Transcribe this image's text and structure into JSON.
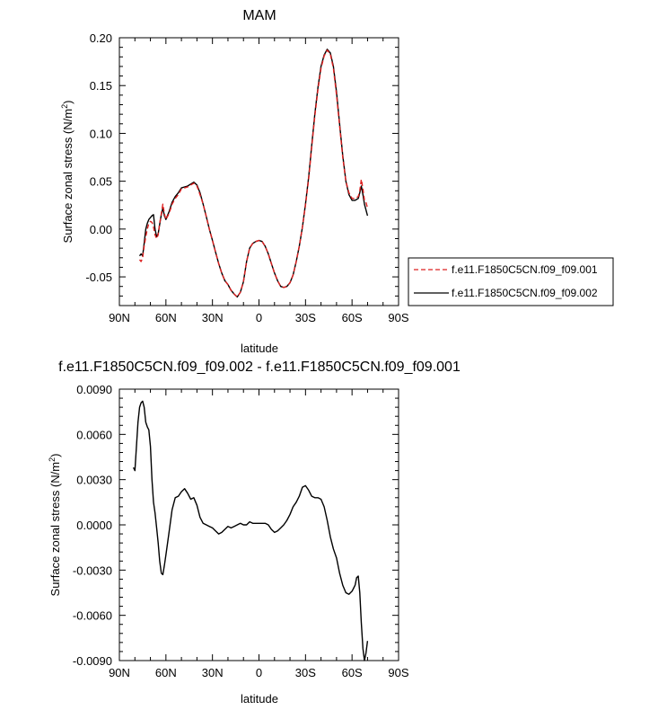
{
  "chart_data": [
    {
      "type": "line",
      "title": "MAM",
      "xlabel": "latitude",
      "ylabel": "Surface zonal stress (N/m",
      "ylabel_superscript": "2",
      "ylabel_close": ")",
      "xlim": [
        90,
        -90
      ],
      "ylim": [
        -0.08,
        0.2
      ],
      "x_ticks": [
        {
          "v": 90,
          "label": "90N"
        },
        {
          "v": 60,
          "label": "60N"
        },
        {
          "v": 30,
          "label": "30N"
        },
        {
          "v": 0,
          "label": "0"
        },
        {
          "v": -30,
          "label": "30S"
        },
        {
          "v": -60,
          "label": "60S"
        },
        {
          "v": -90,
          "label": "90S"
        }
      ],
      "y_ticks": [
        {
          "v": 0.2,
          "label": "0.20"
        },
        {
          "v": 0.15,
          "label": "0.15"
        },
        {
          "v": 0.1,
          "label": "0.10"
        },
        {
          "v": 0.05,
          "label": "0.05"
        },
        {
          "v": 0.0,
          "label": "0.00"
        },
        {
          "v": -0.05,
          "label": "-0.05"
        }
      ],
      "legend": {
        "placement": "right",
        "entries": [
          {
            "label": "f.e11.F1850C5CN.f09_f09.001",
            "color": "#dd2020",
            "dash": "dashed"
          },
          {
            "label": "f.e11.F1850C5CN.f09_f09.002",
            "color": "#000000",
            "dash": "solid"
          }
        ]
      },
      "series": [
        {
          "name": "f.e11.F1850C5CN.f09_f09.001",
          "color": "#dd2020",
          "dash": "dashed",
          "x": [
            77,
            76,
            75,
            74,
            73,
            72,
            71,
            70,
            69,
            68,
            67,
            66,
            65,
            64,
            63,
            62,
            61,
            60,
            58,
            56,
            54,
            52,
            50,
            48,
            46,
            44,
            42,
            40,
            38,
            36,
            34,
            32,
            30,
            28,
            26,
            24,
            22,
            20,
            18,
            16,
            14,
            12,
            10,
            8,
            6,
            4,
            2,
            0,
            -2,
            -4,
            -6,
            -8,
            -10,
            -12,
            -14,
            -16,
            -18,
            -20,
            -22,
            -24,
            -26,
            -28,
            -30,
            -32,
            -34,
            -36,
            -38,
            -40,
            -42,
            -44,
            -46,
            -48,
            -50,
            -52,
            -54,
            -56,
            -58,
            -60,
            -62,
            -64,
            -65,
            -66,
            -67,
            -68,
            -69,
            -70
          ],
          "y": [
            -0.032,
            -0.034,
            -0.03,
            -0.018,
            -0.008,
            0.0,
            0.006,
            0.008,
            0.007,
            0.002,
            -0.006,
            -0.01,
            -0.006,
            0.006,
            0.016,
            0.026,
            0.016,
            0.01,
            0.016,
            0.026,
            0.032,
            0.036,
            0.042,
            0.043,
            0.044,
            0.046,
            0.048,
            0.045,
            0.036,
            0.026,
            0.013,
            0.0,
            -0.012,
            -0.024,
            -0.036,
            -0.046,
            -0.054,
            -0.058,
            -0.064,
            -0.068,
            -0.071,
            -0.066,
            -0.055,
            -0.034,
            -0.02,
            -0.015,
            -0.013,
            -0.012,
            -0.013,
            -0.018,
            -0.026,
            -0.036,
            -0.046,
            -0.054,
            -0.06,
            -0.061,
            -0.06,
            -0.056,
            -0.048,
            -0.034,
            -0.018,
            0.002,
            0.025,
            0.052,
            0.085,
            0.118,
            0.146,
            0.168,
            0.181,
            0.187,
            0.183,
            0.168,
            0.14,
            0.108,
            0.075,
            0.05,
            0.038,
            0.032,
            0.032,
            0.034,
            0.04,
            0.052,
            0.042,
            0.03,
            0.028,
            0.022
          ]
        },
        {
          "name": "f.e11.F1850C5CN.f09_f09.002",
          "color": "#000000",
          "dash": "solid",
          "x": [
            77,
            76,
            75,
            74,
            73,
            72,
            71,
            70,
            69,
            68,
            67,
            66,
            65,
            64,
            63,
            62,
            61,
            60,
            58,
            56,
            54,
            52,
            50,
            48,
            46,
            44,
            42,
            40,
            38,
            36,
            34,
            32,
            30,
            28,
            26,
            24,
            22,
            20,
            18,
            16,
            14,
            12,
            10,
            8,
            6,
            4,
            2,
            0,
            -2,
            -4,
            -6,
            -8,
            -10,
            -12,
            -14,
            -16,
            -18,
            -20,
            -22,
            -24,
            -26,
            -28,
            -30,
            -32,
            -34,
            -36,
            -38,
            -40,
            -42,
            -44,
            -46,
            -48,
            -50,
            -52,
            -54,
            -56,
            -58,
            -60,
            -62,
            -64,
            -65,
            -66,
            -67,
            -68,
            -69,
            -70
          ],
          "y": [
            -0.028,
            -0.026,
            -0.028,
            -0.015,
            0.0,
            0.006,
            0.01,
            0.012,
            0.014,
            0.015,
            0.0,
            -0.008,
            -0.005,
            0.005,
            0.015,
            0.022,
            0.014,
            0.01,
            0.018,
            0.028,
            0.034,
            0.038,
            0.043,
            0.044,
            0.045,
            0.047,
            0.049,
            0.046,
            0.038,
            0.026,
            0.013,
            0.0,
            -0.012,
            -0.024,
            -0.036,
            -0.046,
            -0.054,
            -0.058,
            -0.064,
            -0.068,
            -0.071,
            -0.066,
            -0.055,
            -0.034,
            -0.02,
            -0.015,
            -0.013,
            -0.012,
            -0.013,
            -0.018,
            -0.026,
            -0.036,
            -0.046,
            -0.054,
            -0.06,
            -0.061,
            -0.06,
            -0.056,
            -0.048,
            -0.034,
            -0.018,
            0.002,
            0.026,
            0.054,
            0.087,
            0.12,
            0.148,
            0.17,
            0.182,
            0.188,
            0.184,
            0.17,
            0.143,
            0.11,
            0.077,
            0.05,
            0.036,
            0.03,
            0.03,
            0.032,
            0.038,
            0.045,
            0.036,
            0.026,
            0.02,
            0.014
          ]
        }
      ]
    },
    {
      "type": "line",
      "title": "f.e11.F1850C5CN.f09_f09.002 - f.e11.F1850C5CN.f09_f09.001",
      "xlabel": "latitude",
      "ylabel": "Surface zonal stress (N/m",
      "ylabel_superscript": "2",
      "ylabel_close": ")",
      "xlim": [
        90,
        -90
      ],
      "ylim": [
        -0.009,
        0.009
      ],
      "x_ticks": [
        {
          "v": 90,
          "label": "90N"
        },
        {
          "v": 60,
          "label": "60N"
        },
        {
          "v": 30,
          "label": "30N"
        },
        {
          "v": 0,
          "label": "0"
        },
        {
          "v": -30,
          "label": "30S"
        },
        {
          "v": -60,
          "label": "60S"
        },
        {
          "v": -90,
          "label": "90S"
        }
      ],
      "y_ticks": [
        {
          "v": 0.009,
          "label": "0.0090"
        },
        {
          "v": 0.006,
          "label": "0.0060"
        },
        {
          "v": 0.003,
          "label": "0.0030"
        },
        {
          "v": 0.0,
          "label": "0.0000"
        },
        {
          "v": -0.003,
          "label": "-0.0030"
        },
        {
          "v": -0.006,
          "label": "-0.0060"
        },
        {
          "v": -0.009,
          "label": "-0.0090"
        }
      ],
      "series": [
        {
          "color": "#000000",
          "dash": "solid",
          "x": [
            81,
            80,
            79,
            78,
            77,
            76,
            75,
            74,
            73,
            72,
            71,
            70,
            69,
            68,
            67,
            66,
            65,
            64,
            63,
            62,
            61,
            60,
            58,
            56,
            54,
            52,
            50,
            48,
            46,
            44,
            42,
            40,
            38,
            36,
            34,
            32,
            30,
            28,
            26,
            24,
            22,
            20,
            18,
            16,
            14,
            12,
            10,
            8,
            6,
            4,
            2,
            0,
            -2,
            -4,
            -6,
            -8,
            -10,
            -12,
            -14,
            -16,
            -18,
            -20,
            -22,
            -24,
            -26,
            -28,
            -30,
            -32,
            -34,
            -36,
            -38,
            -40,
            -42,
            -44,
            -46,
            -48,
            -50,
            -52,
            -54,
            -56,
            -58,
            -60,
            -61,
            -62,
            -63,
            -64,
            -65,
            -66,
            -67,
            -68,
            -69,
            -70
          ],
          "y": [
            0.0038,
            0.0036,
            0.0052,
            0.0068,
            0.0078,
            0.0081,
            0.0082,
            0.0078,
            0.0068,
            0.0065,
            0.0063,
            0.0052,
            0.003,
            0.0015,
            0.0008,
            -0.0002,
            -0.0012,
            -0.0024,
            -0.0032,
            -0.0033,
            -0.0027,
            -0.002,
            -0.0005,
            0.001,
            0.0018,
            0.0019,
            0.0022,
            0.0024,
            0.0021,
            0.0017,
            0.0018,
            0.0013,
            0.0005,
            0.0001,
            0.0,
            -0.0001,
            -0.0002,
            -0.0004,
            -0.0006,
            -0.0005,
            -0.0003,
            -0.0001,
            -0.0002,
            -0.0001,
            0.0,
            0.0001,
            0.0,
            0.0,
            0.0002,
            0.0001,
            0.0001,
            0.0001,
            0.0001,
            0.0001,
            0.0,
            -0.0003,
            -0.0005,
            -0.0004,
            -0.0002,
            0.0,
            0.0003,
            0.0007,
            0.0012,
            0.0015,
            0.0019,
            0.0025,
            0.0026,
            0.0023,
            0.0019,
            0.0018,
            0.0018,
            0.0017,
            0.0012,
            0.0003,
            -0.0008,
            -0.0016,
            -0.0022,
            -0.0032,
            -0.004,
            -0.0045,
            -0.0046,
            -0.0044,
            -0.0042,
            -0.004,
            -0.0035,
            -0.0034,
            -0.0045,
            -0.0065,
            -0.0082,
            -0.009,
            -0.0085,
            -0.0077
          ]
        }
      ]
    }
  ]
}
